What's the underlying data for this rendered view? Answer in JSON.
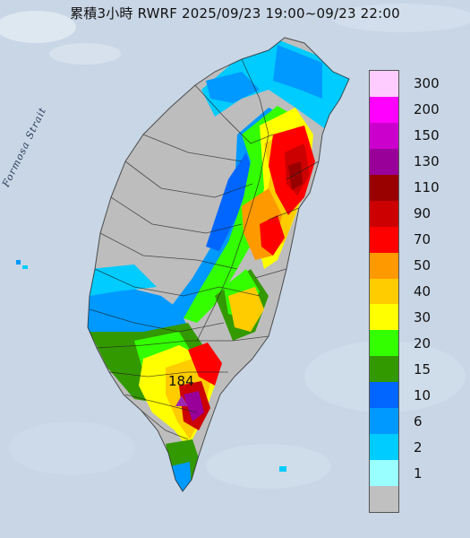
{
  "title": "累積3小時 RWRF 2025/09/23 19:00~09/23 22:00",
  "strait_label": "Formosa Strait",
  "peak_value": "184",
  "legend": {
    "items": [
      {
        "label": "300",
        "color": "#ffccff"
      },
      {
        "label": "200",
        "color": "#ff00ff"
      },
      {
        "label": "150",
        "color": "#cc00cc"
      },
      {
        "label": "130",
        "color": "#990099"
      },
      {
        "label": "110",
        "color": "#990000"
      },
      {
        "label": "90",
        "color": "#cc0000"
      },
      {
        "label": "70",
        "color": "#ff0000"
      },
      {
        "label": "50",
        "color": "#ff9900"
      },
      {
        "label": "40",
        "color": "#ffcc00"
      },
      {
        "label": "30",
        "color": "#ffff00"
      },
      {
        "label": "20",
        "color": "#33ff00"
      },
      {
        "label": "15",
        "color": "#339900"
      },
      {
        "label": "10",
        "color": "#0066ff"
      },
      {
        "label": "6",
        "color": "#0099ff"
      },
      {
        "label": "2",
        "color": "#00ccff"
      },
      {
        "label": "1",
        "color": "#99ffff"
      },
      {
        "label": "",
        "color": "#c0c0c0"
      }
    ]
  },
  "colors": {
    "sea": "#c8d6e6",
    "land_dry": "#bdbdbd"
  }
}
